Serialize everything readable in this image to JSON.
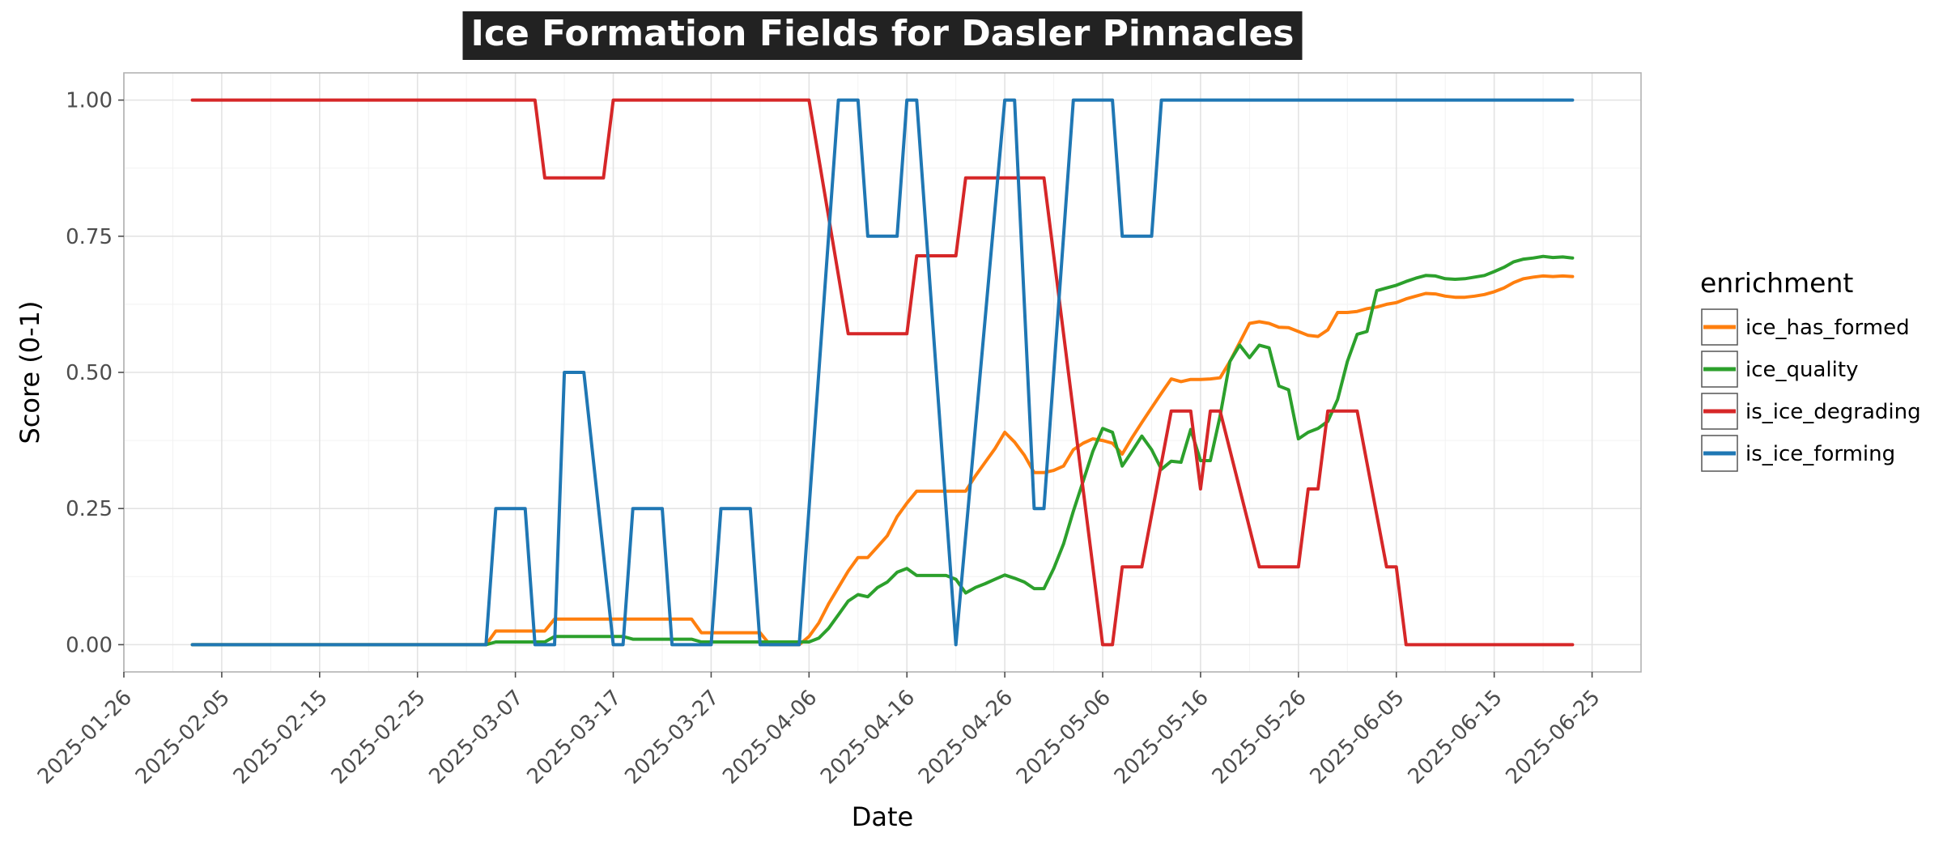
{
  "chart_data": {
    "type": "line",
    "title": "Ice Formation Fields for Dasler Pinnacles",
    "xlabel": "Date",
    "ylabel": "Score (0-1)",
    "xlim": [
      "2025-01-26",
      "2025-06-30"
    ],
    "ylim": [
      -0.05,
      1.05
    ],
    "x_ticks": [
      "2025-01-26",
      "2025-02-05",
      "2025-02-15",
      "2025-02-25",
      "2025-03-07",
      "2025-03-17",
      "2025-03-27",
      "2025-04-06",
      "2025-04-16",
      "2025-04-26",
      "2025-05-06",
      "2025-05-16",
      "2025-05-26",
      "2025-06-05",
      "2025-06-15",
      "2025-06-25"
    ],
    "y_ticks": [
      "0.00",
      "0.25",
      "0.50",
      "0.75",
      "1.00"
    ],
    "grid": true,
    "legend": {
      "title": "enrichment",
      "position": "right"
    },
    "series": [
      {
        "name": "ice_has_formed",
        "color": "#ff7f0e",
        "points": [
          [
            "2025-02-02",
            0
          ],
          [
            "2025-03-04",
            0
          ],
          [
            "2025-03-05",
            0.025
          ],
          [
            "2025-03-10",
            0.025
          ],
          [
            "2025-03-11",
            0.047
          ],
          [
            "2025-03-25",
            0.047
          ],
          [
            "2025-03-26",
            0.022
          ],
          [
            "2025-04-01",
            0.022
          ],
          [
            "2025-04-02",
            0
          ],
          [
            "2025-04-05",
            0
          ],
          [
            "2025-04-06",
            0.015
          ],
          [
            "2025-04-07",
            0.04
          ],
          [
            "2025-04-08",
            0.075
          ],
          [
            "2025-04-09",
            0.105
          ],
          [
            "2025-04-10",
            0.135
          ],
          [
            "2025-04-11",
            0.16
          ],
          [
            "2025-04-12",
            0.16
          ],
          [
            "2025-04-13",
            0.18
          ],
          [
            "2025-04-14",
            0.2
          ],
          [
            "2025-04-15",
            0.235
          ],
          [
            "2025-04-16",
            0.26
          ],
          [
            "2025-04-17",
            0.282
          ],
          [
            "2025-04-18",
            0.282
          ],
          [
            "2025-04-22",
            0.282
          ],
          [
            "2025-04-23",
            0.31
          ],
          [
            "2025-04-24",
            0.335
          ],
          [
            "2025-04-25",
            0.36
          ],
          [
            "2025-04-26",
            0.39
          ],
          [
            "2025-04-27",
            0.372
          ],
          [
            "2025-04-28",
            0.348
          ],
          [
            "2025-04-29",
            0.316
          ],
          [
            "2025-04-30",
            0.316
          ],
          [
            "2025-05-01",
            0.32
          ],
          [
            "2025-05-02",
            0.328
          ],
          [
            "2025-05-03",
            0.358
          ],
          [
            "2025-05-04",
            0.37
          ],
          [
            "2025-05-05",
            0.378
          ],
          [
            "2025-05-06",
            0.375
          ],
          [
            "2025-05-07",
            0.37
          ],
          [
            "2025-05-08",
            0.35
          ],
          [
            "2025-05-09",
            0.38
          ],
          [
            "2025-05-10",
            0.408
          ],
          [
            "2025-05-11",
            0.435
          ],
          [
            "2025-05-12",
            0.462
          ],
          [
            "2025-05-13",
            0.488
          ],
          [
            "2025-05-14",
            0.483
          ],
          [
            "2025-05-15",
            0.487
          ],
          [
            "2025-05-16",
            0.487
          ],
          [
            "2025-05-17",
            0.488
          ],
          [
            "2025-05-18",
            0.49
          ],
          [
            "2025-05-19",
            0.52
          ],
          [
            "2025-05-20",
            0.555
          ],
          [
            "2025-05-21",
            0.59
          ],
          [
            "2025-05-22",
            0.593
          ],
          [
            "2025-05-23",
            0.59
          ],
          [
            "2025-05-24",
            0.583
          ],
          [
            "2025-05-25",
            0.582
          ],
          [
            "2025-05-26",
            0.575
          ],
          [
            "2025-05-27",
            0.568
          ],
          [
            "2025-05-28",
            0.566
          ],
          [
            "2025-05-29",
            0.578
          ],
          [
            "2025-05-30",
            0.61
          ],
          [
            "2025-05-31",
            0.61
          ],
          [
            "2025-06-01",
            0.612
          ],
          [
            "2025-06-02",
            0.617
          ],
          [
            "2025-06-03",
            0.62
          ],
          [
            "2025-06-04",
            0.625
          ],
          [
            "2025-06-05",
            0.628
          ],
          [
            "2025-06-06",
            0.635
          ],
          [
            "2025-06-07",
            0.64
          ],
          [
            "2025-06-08",
            0.645
          ],
          [
            "2025-06-09",
            0.644
          ],
          [
            "2025-06-10",
            0.64
          ],
          [
            "2025-06-11",
            0.638
          ],
          [
            "2025-06-12",
            0.638
          ],
          [
            "2025-06-13",
            0.64
          ],
          [
            "2025-06-14",
            0.643
          ],
          [
            "2025-06-15",
            0.648
          ],
          [
            "2025-06-16",
            0.655
          ],
          [
            "2025-06-17",
            0.665
          ],
          [
            "2025-06-18",
            0.672
          ],
          [
            "2025-06-19",
            0.675
          ],
          [
            "2025-06-20",
            0.677
          ],
          [
            "2025-06-21",
            0.676
          ],
          [
            "2025-06-22",
            0.677
          ],
          [
            "2025-06-23",
            0.676
          ]
        ]
      },
      {
        "name": "ice_quality",
        "color": "#2ca02c",
        "points": [
          [
            "2025-02-02",
            0
          ],
          [
            "2025-03-04",
            0
          ],
          [
            "2025-03-05",
            0.005
          ],
          [
            "2025-03-10",
            0.005
          ],
          [
            "2025-03-11",
            0.015
          ],
          [
            "2025-03-18",
            0.015
          ],
          [
            "2025-03-19",
            0.01
          ],
          [
            "2025-03-25",
            0.01
          ],
          [
            "2025-03-26",
            0.005
          ],
          [
            "2025-04-05",
            0.005
          ],
          [
            "2025-04-06",
            0.005
          ],
          [
            "2025-04-07",
            0.012
          ],
          [
            "2025-04-08",
            0.03
          ],
          [
            "2025-04-09",
            0.055
          ],
          [
            "2025-04-10",
            0.08
          ],
          [
            "2025-04-11",
            0.092
          ],
          [
            "2025-04-12",
            0.088
          ],
          [
            "2025-04-13",
            0.105
          ],
          [
            "2025-04-14",
            0.115
          ],
          [
            "2025-04-15",
            0.133
          ],
          [
            "2025-04-16",
            0.14
          ],
          [
            "2025-04-17",
            0.127
          ],
          [
            "2025-04-20",
            0.127
          ],
          [
            "2025-04-21",
            0.12
          ],
          [
            "2025-04-22",
            0.095
          ],
          [
            "2025-04-23",
            0.105
          ],
          [
            "2025-04-24",
            0.112
          ],
          [
            "2025-04-25",
            0.12
          ],
          [
            "2025-04-26",
            0.128
          ],
          [
            "2025-04-27",
            0.122
          ],
          [
            "2025-04-28",
            0.115
          ],
          [
            "2025-04-29",
            0.103
          ],
          [
            "2025-04-30",
            0.103
          ],
          [
            "2025-05-01",
            0.14
          ],
          [
            "2025-05-02",
            0.185
          ],
          [
            "2025-05-03",
            0.245
          ],
          [
            "2025-05-04",
            0.3
          ],
          [
            "2025-05-05",
            0.355
          ],
          [
            "2025-05-06",
            0.397
          ],
          [
            "2025-05-07",
            0.39
          ],
          [
            "2025-05-08",
            0.328
          ],
          [
            "2025-05-09",
            0.355
          ],
          [
            "2025-05-10",
            0.383
          ],
          [
            "2025-05-11",
            0.358
          ],
          [
            "2025-05-12",
            0.322
          ],
          [
            "2025-05-13",
            0.337
          ],
          [
            "2025-05-14",
            0.335
          ],
          [
            "2025-05-15",
            0.395
          ],
          [
            "2025-05-16",
            0.338
          ],
          [
            "2025-05-17",
            0.338
          ],
          [
            "2025-05-18",
            0.42
          ],
          [
            "2025-05-19",
            0.52
          ],
          [
            "2025-05-20",
            0.55
          ],
          [
            "2025-05-21",
            0.527
          ],
          [
            "2025-05-22",
            0.55
          ],
          [
            "2025-05-23",
            0.545
          ],
          [
            "2025-05-24",
            0.475
          ],
          [
            "2025-05-25",
            0.468
          ],
          [
            "2025-05-26",
            0.378
          ],
          [
            "2025-05-27",
            0.39
          ],
          [
            "2025-05-28",
            0.397
          ],
          [
            "2025-05-29",
            0.41
          ],
          [
            "2025-05-30",
            0.45
          ],
          [
            "2025-05-31",
            0.52
          ],
          [
            "2025-06-01",
            0.57
          ],
          [
            "2025-06-02",
            0.575
          ],
          [
            "2025-06-03",
            0.65
          ],
          [
            "2025-06-04",
            0.655
          ],
          [
            "2025-06-05",
            0.66
          ],
          [
            "2025-06-06",
            0.667
          ],
          [
            "2025-06-07",
            0.673
          ],
          [
            "2025-06-08",
            0.678
          ],
          [
            "2025-06-09",
            0.677
          ],
          [
            "2025-06-10",
            0.672
          ],
          [
            "2025-06-11",
            0.671
          ],
          [
            "2025-06-12",
            0.672
          ],
          [
            "2025-06-13",
            0.675
          ],
          [
            "2025-06-14",
            0.678
          ],
          [
            "2025-06-15",
            0.685
          ],
          [
            "2025-06-16",
            0.693
          ],
          [
            "2025-06-17",
            0.703
          ],
          [
            "2025-06-18",
            0.708
          ],
          [
            "2025-06-19",
            0.71
          ],
          [
            "2025-06-20",
            0.713
          ],
          [
            "2025-06-21",
            0.711
          ],
          [
            "2025-06-22",
            0.712
          ],
          [
            "2025-06-23",
            0.71
          ]
        ]
      },
      {
        "name": "is_ice_degrading",
        "color": "#d62728",
        "points": [
          [
            "2025-02-02",
            1
          ],
          [
            "2025-03-09",
            1
          ],
          [
            "2025-03-10",
            0.857
          ],
          [
            "2025-03-16",
            0.857
          ],
          [
            "2025-03-17",
            1
          ],
          [
            "2025-04-06",
            1
          ],
          [
            "2025-04-10",
            0.571
          ],
          [
            "2025-04-16",
            0.571
          ],
          [
            "2025-04-17",
            0.714
          ],
          [
            "2025-04-21",
            0.714
          ],
          [
            "2025-04-22",
            0.857
          ],
          [
            "2025-04-30",
            0.857
          ],
          [
            "2025-05-06",
            0
          ],
          [
            "2025-05-07",
            0
          ],
          [
            "2025-05-08",
            0.143
          ],
          [
            "2025-05-10",
            0.143
          ],
          [
            "2025-05-13",
            0.429
          ],
          [
            "2025-05-15",
            0.429
          ],
          [
            "2025-05-16",
            0.286
          ],
          [
            "2025-05-17",
            0.429
          ],
          [
            "2025-05-18",
            0.429
          ],
          [
            "2025-05-22",
            0.143
          ],
          [
            "2025-05-26",
            0.143
          ],
          [
            "2025-05-27",
            0.286
          ],
          [
            "2025-05-28",
            0.286
          ],
          [
            "2025-05-29",
            0.429
          ],
          [
            "2025-06-01",
            0.429
          ],
          [
            "2025-06-04",
            0.143
          ],
          [
            "2025-06-05",
            0.143
          ],
          [
            "2025-06-06",
            0
          ],
          [
            "2025-06-23",
            0
          ]
        ]
      },
      {
        "name": "is_ice_forming",
        "color": "#1f77b4",
        "points": [
          [
            "2025-02-02",
            0
          ],
          [
            "2025-03-04",
            0
          ],
          [
            "2025-03-05",
            0.25
          ],
          [
            "2025-03-08",
            0.25
          ],
          [
            "2025-03-09",
            0
          ],
          [
            "2025-03-11",
            0
          ],
          [
            "2025-03-12",
            0.5
          ],
          [
            "2025-03-14",
            0.5
          ],
          [
            "2025-03-17",
            0
          ],
          [
            "2025-03-18",
            0
          ],
          [
            "2025-03-19",
            0.25
          ],
          [
            "2025-03-22",
            0.25
          ],
          [
            "2025-03-23",
            0
          ],
          [
            "2025-03-27",
            0
          ],
          [
            "2025-03-28",
            0.25
          ],
          [
            "2025-03-31",
            0.25
          ],
          [
            "2025-04-01",
            0
          ],
          [
            "2025-04-05",
            0
          ],
          [
            "2025-04-09",
            1
          ],
          [
            "2025-04-11",
            1
          ],
          [
            "2025-04-12",
            0.75
          ],
          [
            "2025-04-15",
            0.75
          ],
          [
            "2025-04-16",
            1
          ],
          [
            "2025-04-17",
            1
          ],
          [
            "2025-04-21",
            0
          ],
          [
            "2025-04-26",
            1
          ],
          [
            "2025-04-27",
            1
          ],
          [
            "2025-04-29",
            0.25
          ],
          [
            "2025-04-30",
            0.25
          ],
          [
            "2025-05-03",
            1
          ],
          [
            "2025-05-07",
            1
          ],
          [
            "2025-05-08",
            0.75
          ],
          [
            "2025-05-11",
            0.75
          ],
          [
            "2025-05-12",
            1
          ],
          [
            "2025-06-23",
            1
          ]
        ]
      }
    ]
  }
}
